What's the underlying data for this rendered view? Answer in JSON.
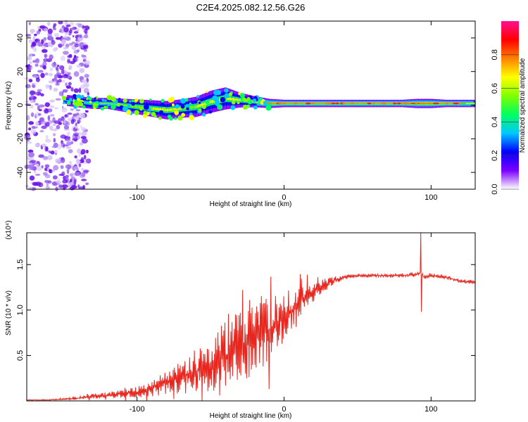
{
  "title": "C2E4.2025.082.12.56.G26",
  "colors": {
    "snr_line": "#e8261e",
    "spectrogram_floor": "#ffffff"
  },
  "chart_data": [
    {
      "type": "heatmap",
      "xlabel": "Height of straight line (km)",
      "ylabel": "Frequency (Hz)",
      "xlim": [
        -175,
        130
      ],
      "ylim": [
        -50,
        50
      ],
      "x_ticks": [
        -100,
        0,
        100
      ],
      "x_tick_labels": [
        "-100",
        "0",
        "100"
      ],
      "y_ticks": [
        -40,
        -20,
        0,
        20,
        40
      ],
      "y_tick_labels": [
        "-40",
        "-20",
        "0",
        "20",
        "40"
      ],
      "colorbar": {
        "label": "Normalized spectral amplitude",
        "range": [
          0,
          1
        ],
        "ticks": [
          0.0,
          0.2,
          0.4,
          0.6,
          0.8
        ],
        "tick_labels": [
          "0.0",
          "0.2",
          "0.4",
          "0.6",
          "0.8"
        ],
        "colormap": [
          "#ffffff",
          "#7a00ff",
          "#0000ff",
          "#00c8ff",
          "#00ff60",
          "#80ff00",
          "#ffff00",
          "#ff8000",
          "#ff0000",
          "#ff1090"
        ]
      },
      "ridge": {
        "x": [
          -150,
          -140,
          -130,
          -120,
          -110,
          -100,
          -90,
          -80,
          -70,
          -60,
          -50,
          -40,
          -30,
          -20,
          -10,
          0,
          20,
          40,
          60,
          80,
          90,
          100,
          110,
          120,
          130
        ],
        "frequency": [
          3,
          2,
          1,
          1,
          0,
          -1,
          -2,
          -3,
          -2,
          -1,
          2,
          4,
          3,
          2,
          1,
          1,
          1,
          1,
          1,
          1,
          1,
          1,
          1,
          1,
          1
        ],
        "width": [
          6,
          6,
          6,
          6,
          7,
          8,
          9,
          10,
          10,
          11,
          12,
          12,
          8,
          6,
          5,
          4,
          4,
          4,
          4,
          4,
          5,
          5,
          4,
          4,
          4
        ],
        "amplitude": [
          0.2,
          0.3,
          0.35,
          0.4,
          0.45,
          0.45,
          0.45,
          0.5,
          0.45,
          0.45,
          0.5,
          0.45,
          0.5,
          0.5,
          0.55,
          0.6,
          0.6,
          0.6,
          0.6,
          0.6,
          0.65,
          0.6,
          0.6,
          0.55,
          0.5
        ]
      },
      "noise_region_x": [
        -175,
        -133
      ]
    },
    {
      "type": "line",
      "xlabel": "Height of straight line (km)",
      "ylabel": "SNR (10 * v/v)",
      "y_scale_label": "(x10⁴)",
      "xlim": [
        -175,
        130
      ],
      "ylim": [
        0,
        1.85
      ],
      "x_ticks": [
        -100,
        0,
        100
      ],
      "x_tick_labels": [
        "-100",
        "0",
        "100"
      ],
      "y_ticks": [
        0.5,
        1.0,
        1.5
      ],
      "y_tick_labels": [
        "0.5",
        "1.0",
        "1.5"
      ],
      "series": [
        {
          "x": [
            -175,
            -160,
            -150,
            -140,
            -130,
            -120,
            -110,
            -100,
            -90,
            -80,
            -70,
            -60,
            -50,
            -40,
            -30,
            -20,
            -10,
            0,
            10,
            20,
            30,
            40,
            50,
            60,
            70,
            80,
            90,
            93,
            95,
            100,
            110,
            120,
            130
          ],
          "y": [
            0.01,
            0.01,
            0.02,
            0.03,
            0.05,
            0.06,
            0.08,
            0.1,
            0.14,
            0.2,
            0.26,
            0.32,
            0.4,
            0.5,
            0.58,
            0.68,
            0.78,
            0.92,
            1.08,
            1.2,
            1.3,
            1.36,
            1.38,
            1.38,
            1.38,
            1.38,
            1.39,
            1.42,
            1.36,
            1.38,
            1.36,
            1.32,
            1.3
          ],
          "spread": [
            0.005,
            0.005,
            0.01,
            0.02,
            0.03,
            0.04,
            0.05,
            0.07,
            0.1,
            0.16,
            0.2,
            0.28,
            0.34,
            0.42,
            0.45,
            0.45,
            0.42,
            0.32,
            0.2,
            0.12,
            0.06,
            0.03,
            0.02,
            0.02,
            0.02,
            0.02,
            0.02,
            0.02,
            0.02,
            0.02,
            0.02,
            0.02,
            0.02
          ]
        }
      ],
      "spike": {
        "x": 93,
        "peak": 1.85,
        "trough": 0.98
      }
    }
  ]
}
